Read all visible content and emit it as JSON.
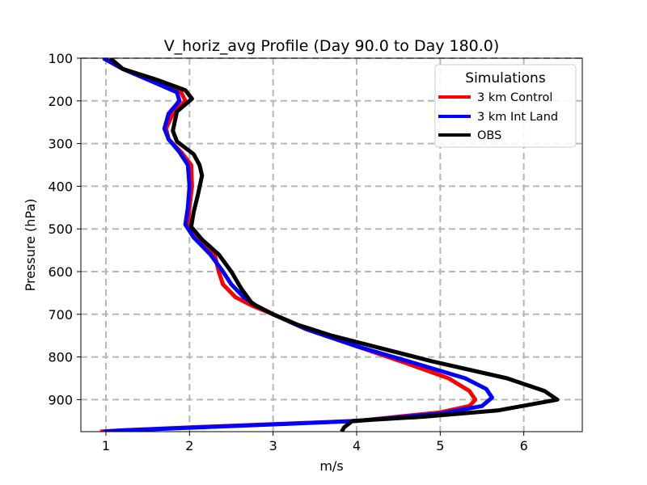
{
  "chart_data": {
    "type": "line",
    "title": "V_horiz_avg Profile (Day 90.0 to Day 180.0)",
    "xlabel": "m/s",
    "ylabel": "Pressure (hPa)",
    "xlim": [
      0.7,
      6.7
    ],
    "ylim": [
      975,
      100
    ],
    "y_inverted": true,
    "x_ticks": [
      1,
      2,
      3,
      4,
      5,
      6
    ],
    "y_ticks": [
      100,
      200,
      300,
      400,
      500,
      600,
      700,
      800,
      900
    ],
    "grid": true,
    "legend": {
      "title": "Simulations",
      "position": "top-right"
    },
    "series": [
      {
        "name": "3 km Control",
        "color": "#ff0000",
        "points": [
          [
            0.97,
            100
          ],
          [
            1.2,
            125
          ],
          [
            1.5,
            150
          ],
          [
            1.9,
            180
          ],
          [
            1.95,
            200
          ],
          [
            1.8,
            230
          ],
          [
            1.72,
            265
          ],
          [
            1.75,
            290
          ],
          [
            1.9,
            320
          ],
          [
            2.02,
            350
          ],
          [
            2.03,
            400
          ],
          [
            2.0,
            450
          ],
          [
            1.98,
            490
          ],
          [
            2.1,
            520
          ],
          [
            2.3,
            560
          ],
          [
            2.35,
            600
          ],
          [
            2.4,
            630
          ],
          [
            2.55,
            660
          ],
          [
            2.75,
            680
          ],
          [
            3.0,
            700
          ],
          [
            3.4,
            735
          ],
          [
            4.0,
            775
          ],
          [
            4.6,
            815
          ],
          [
            5.1,
            850
          ],
          [
            5.35,
            880
          ],
          [
            5.42,
            900
          ],
          [
            5.35,
            915
          ],
          [
            5.0,
            930
          ],
          [
            4.0,
            950
          ],
          [
            2.0,
            965
          ],
          [
            1.2,
            972
          ],
          [
            0.93,
            975
          ]
        ]
      },
      {
        "name": "3 km Int Land",
        "color": "#0000ff",
        "points": [
          [
            0.97,
            100
          ],
          [
            1.2,
            125
          ],
          [
            1.5,
            150
          ],
          [
            1.85,
            180
          ],
          [
            1.88,
            200
          ],
          [
            1.75,
            230
          ],
          [
            1.7,
            265
          ],
          [
            1.75,
            290
          ],
          [
            1.88,
            320
          ],
          [
            1.98,
            350
          ],
          [
            2.0,
            400
          ],
          [
            1.98,
            450
          ],
          [
            1.95,
            490
          ],
          [
            2.05,
            520
          ],
          [
            2.25,
            560
          ],
          [
            2.4,
            600
          ],
          [
            2.5,
            630
          ],
          [
            2.65,
            660
          ],
          [
            2.8,
            680
          ],
          [
            3.0,
            700
          ],
          [
            3.4,
            735
          ],
          [
            4.0,
            775
          ],
          [
            4.7,
            815
          ],
          [
            5.3,
            850
          ],
          [
            5.55,
            875
          ],
          [
            5.62,
            895
          ],
          [
            5.5,
            915
          ],
          [
            5.0,
            933
          ],
          [
            4.0,
            950
          ],
          [
            2.5,
            962
          ],
          [
            1.2,
            972
          ],
          [
            0.97,
            975
          ]
        ]
      },
      {
        "name": "OBS",
        "color": "#000000",
        "points": [
          [
            1.05,
            100
          ],
          [
            1.2,
            125
          ],
          [
            1.6,
            150
          ],
          [
            1.95,
            175
          ],
          [
            2.03,
            195
          ],
          [
            1.85,
            225
          ],
          [
            1.8,
            270
          ],
          [
            1.85,
            295
          ],
          [
            2.05,
            325
          ],
          [
            2.12,
            350
          ],
          [
            2.15,
            375
          ],
          [
            2.1,
            420
          ],
          [
            2.05,
            460
          ],
          [
            2.02,
            495
          ],
          [
            2.15,
            525
          ],
          [
            2.35,
            560
          ],
          [
            2.5,
            600
          ],
          [
            2.62,
            640
          ],
          [
            2.75,
            675
          ],
          [
            3.0,
            700
          ],
          [
            3.3,
            725
          ],
          [
            3.7,
            750
          ],
          [
            4.2,
            775
          ],
          [
            4.9,
            810
          ],
          [
            5.8,
            850
          ],
          [
            6.25,
            880
          ],
          [
            6.4,
            900
          ],
          [
            5.7,
            925
          ],
          [
            4.8,
            940
          ],
          [
            3.95,
            950
          ],
          [
            3.85,
            965
          ],
          [
            3.82,
            975
          ]
        ]
      }
    ]
  }
}
